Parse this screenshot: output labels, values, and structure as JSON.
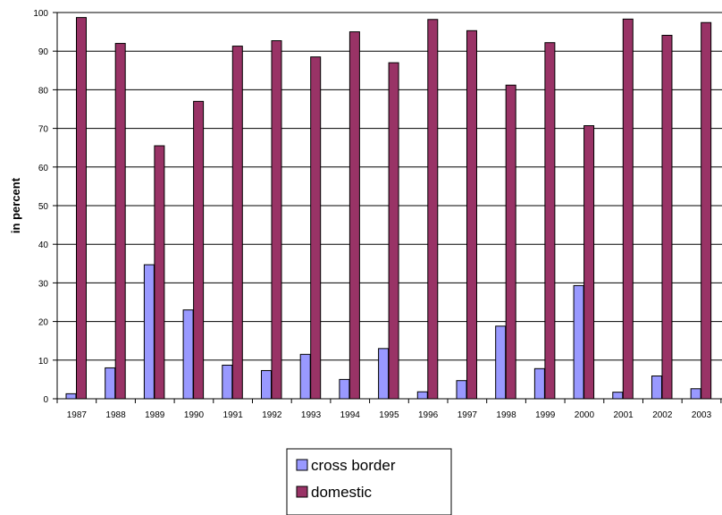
{
  "chart_data": {
    "type": "bar",
    "title": "",
    "xlabel": "",
    "ylabel": "in percent",
    "ylim": [
      0,
      100
    ],
    "yticks": [
      0,
      10,
      20,
      30,
      40,
      50,
      60,
      70,
      80,
      90,
      100
    ],
    "grid": true,
    "legend_position": "bottom",
    "categories": [
      "1987",
      "1988",
      "1989",
      "1990",
      "1991",
      "1992",
      "1993",
      "1994",
      "1995",
      "1996",
      "1997",
      "1998",
      "1999",
      "2000",
      "2001",
      "2002",
      "2003"
    ],
    "series": [
      {
        "name": "cross border",
        "color": "#9999FF",
        "values": [
          1.3,
          8.0,
          34.7,
          23.0,
          8.7,
          7.3,
          11.5,
          5.0,
          13.0,
          1.8,
          4.7,
          18.8,
          7.8,
          29.3,
          1.7,
          5.9,
          2.6
        ]
      },
      {
        "name": "domestic",
        "color": "#993366",
        "values": [
          98.7,
          92.0,
          65.5,
          77.0,
          91.3,
          92.7,
          88.5,
          95.0,
          87.0,
          98.2,
          95.3,
          81.2,
          92.2,
          70.7,
          98.3,
          94.1,
          97.4
        ]
      }
    ]
  }
}
